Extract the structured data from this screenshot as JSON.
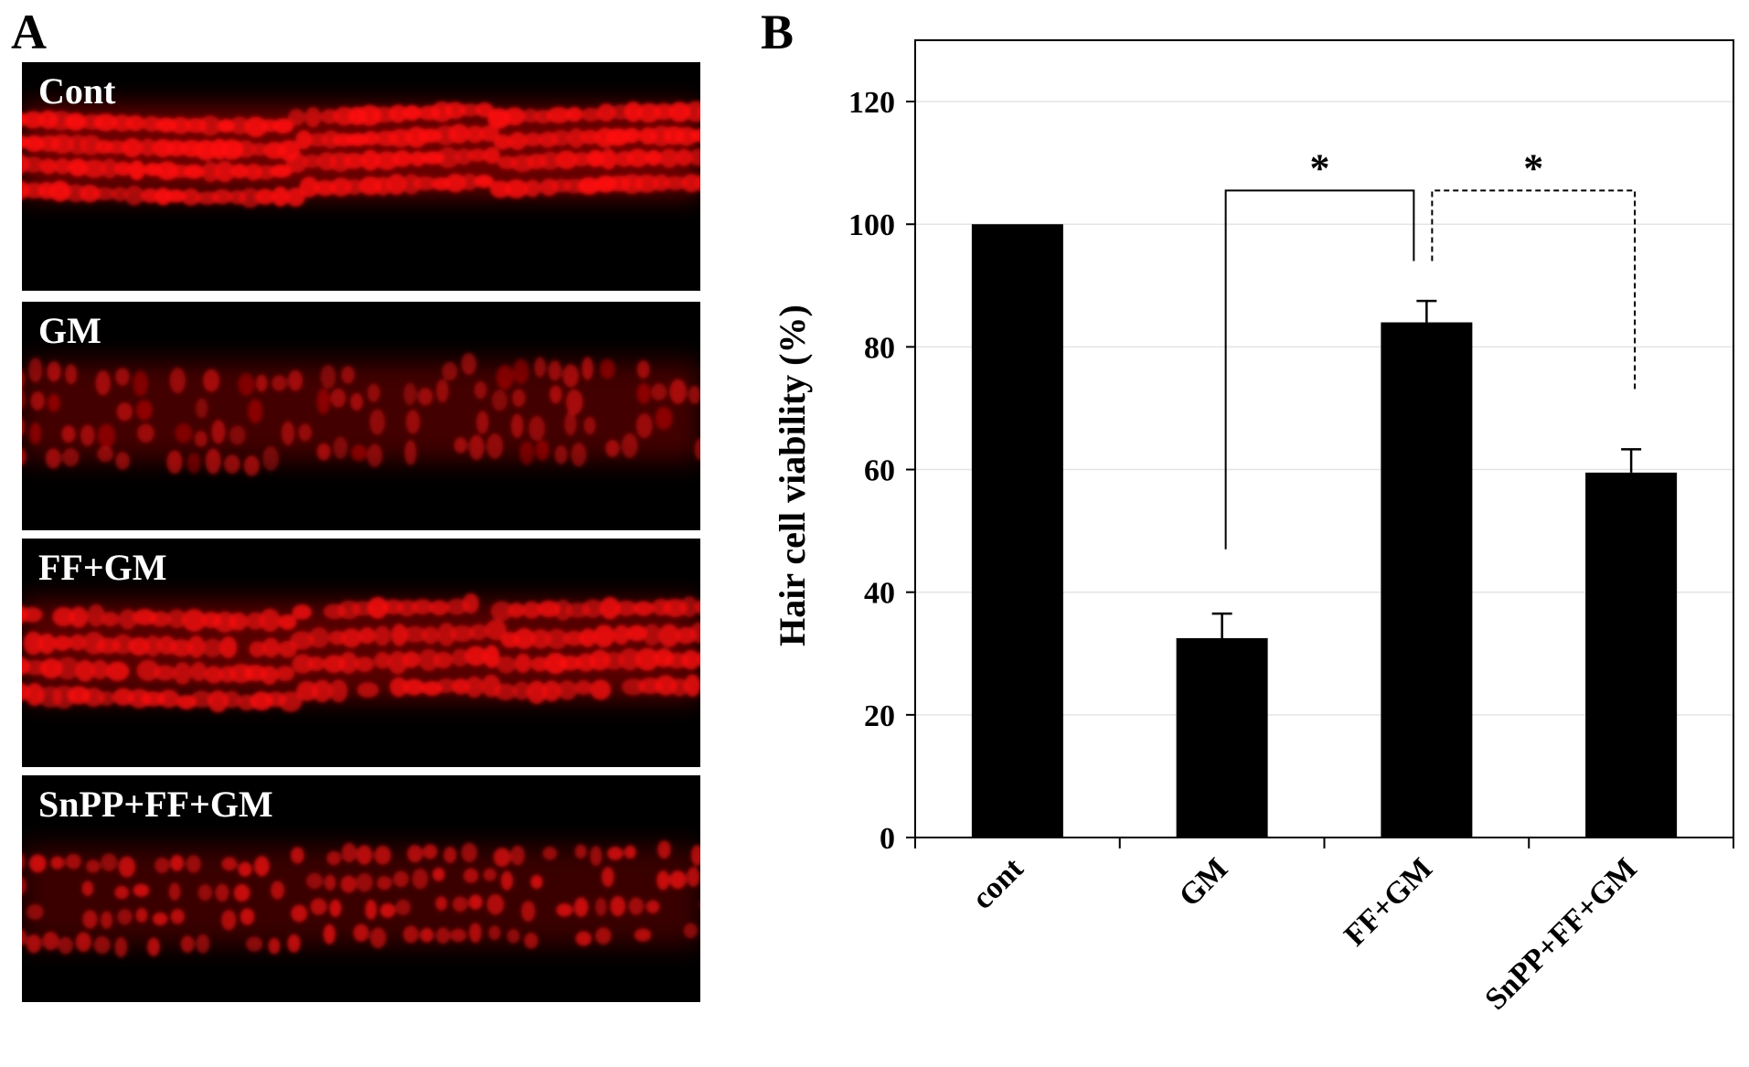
{
  "panel_a": {
    "letter": "A",
    "images": [
      {
        "label": "Cont",
        "pattern": "dense-four-row-hair-cells"
      },
      {
        "label": "GM",
        "pattern": "diffuse-damaged-hair-cells"
      },
      {
        "label": "FF+GM",
        "pattern": "preserved-hair-cells"
      },
      {
        "label": "SnPP+FF+GM",
        "pattern": "partially-damaged-hair-cells"
      }
    ],
    "fluorescence_color": "#ff1010"
  },
  "panel_b": {
    "letter": "B"
  },
  "chart_data": {
    "type": "bar",
    "categories": [
      "cont",
      "GM",
      "FF+GM",
      "SnPP+FF+GM"
    ],
    "values": [
      100,
      32.5,
      84,
      59.5
    ],
    "errors": [
      0,
      4,
      3.5,
      3.8
    ],
    "ylabel": "Hair cell viability (%)",
    "ylim": [
      0,
      130
    ],
    "yticks": [
      0,
      20,
      40,
      60,
      80,
      100,
      120
    ],
    "bar_color": "#000000",
    "grid": true,
    "annotations": [
      {
        "from": "GM",
        "to": "FF+GM",
        "label": "*",
        "style": "solid"
      },
      {
        "from": "FF+GM",
        "to": "SnPP+FF+GM",
        "label": "*",
        "style": "dashed"
      }
    ]
  }
}
